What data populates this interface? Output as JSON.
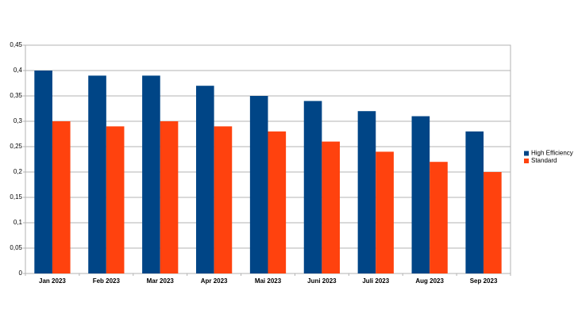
{
  "chart_data": {
    "type": "bar",
    "categories": [
      "Jan 2023",
      "Feb 2023",
      "Mar 2023",
      "Apr 2023",
      "Mai 2023",
      "Juni 2023",
      "Juli 2023",
      "Aug 2023",
      "Sep 2023"
    ],
    "series": [
      {
        "name": "High Efficiency",
        "color": "#004586",
        "values": [
          0.4,
          0.39,
          0.39,
          0.37,
          0.35,
          0.34,
          0.32,
          0.31,
          0.28
        ]
      },
      {
        "name": "Standard",
        "color": "#ff420e",
        "values": [
          0.3,
          0.29,
          0.3,
          0.29,
          0.28,
          0.26,
          0.24,
          0.22,
          0.2
        ]
      }
    ],
    "ylim": [
      0,
      0.45
    ],
    "yticks": [
      0,
      {
        "value": 0.05,
        "label": "0,05"
      },
      {
        "value": 0.1,
        "label": "0,1"
      },
      {
        "value": 0.15,
        "label": "0,15"
      },
      {
        "value": 0.2,
        "label": "0,2"
      },
      {
        "value": 0.25,
        "label": "0,25"
      },
      {
        "value": 0.3,
        "label": "0,3"
      },
      {
        "value": 0.35,
        "label": "0,35"
      },
      {
        "value": 0.4,
        "label": "0,4"
      },
      {
        "value": 0.45,
        "label": "0,45"
      }
    ],
    "grid": true,
    "legend": "right"
  }
}
